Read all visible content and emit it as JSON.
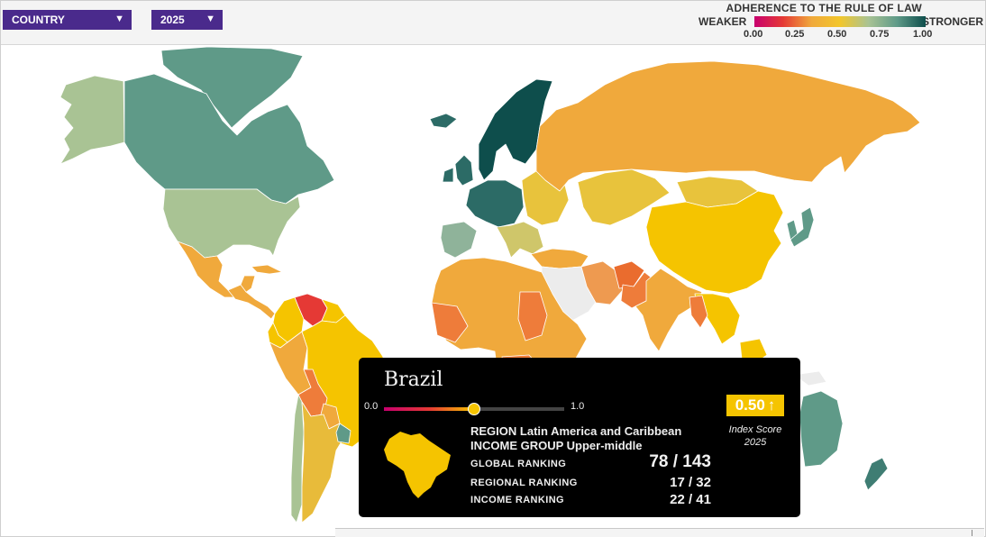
{
  "filters": {
    "country_label": "COUNTRY",
    "year_label": "2025"
  },
  "legend": {
    "title": "ADHERENCE TO THE RULE OF LAW",
    "weaker": "WEAKER",
    "stronger": "STRONGER",
    "ticks": [
      "0.00",
      "0.25",
      "0.50",
      "0.75",
      "1.00"
    ],
    "gradient_colors": [
      "#c8006e",
      "#e53935",
      "#f0a93c",
      "#f2c62b",
      "#a9c394",
      "#5f9a88",
      "#0e4e4c"
    ]
  },
  "tooltip": {
    "country": "Brazil",
    "slider_min": "0.0",
    "slider_max": "1.0",
    "score": "0.50",
    "score_arrow": "↑",
    "score_label": "Index Score",
    "score_year": "2025",
    "region_line": "REGION Latin America and Caribbean",
    "income_line": "INCOME GROUP Upper-middle",
    "global_ranking_label": "GLOBAL RANKING",
    "global_ranking_value": "78 / 143",
    "regional_ranking_label": "REGIONAL RANKING",
    "regional_ranking_value": "17 / 32",
    "income_ranking_label": "INCOME RANKING",
    "income_ranking_value": "22 / 41",
    "score_value": 0.5
  },
  "map_colors": {
    "no_data": "#ececec",
    "canada": "#5f9a88",
    "usa": "#a9c394",
    "alaska": "#a9c394",
    "greenland": "#5f9a88",
    "mexico": "#f0a93c",
    "brazil": "#f5c400",
    "venezuela": "#e53935",
    "russia": "#f0a93c",
    "china": "#f5c400",
    "nordics": "#0e4e4c",
    "australia": "#5f9a88",
    "africa_main": "#f0a93c",
    "africa_orange": "#ee7c3a"
  },
  "icons": {
    "dropdown": "caret-down-icon",
    "arrow_up": "arrow-up-icon"
  }
}
